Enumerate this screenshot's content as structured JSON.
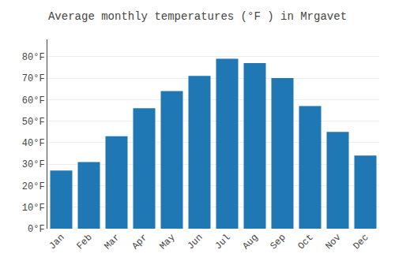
{
  "chart_data": {
    "type": "bar",
    "title": "Average monthly temperatures (°F ) in Mrgavet",
    "categories": [
      "Jan",
      "Feb",
      "Mar",
      "Apr",
      "May",
      "Jun",
      "Jul",
      "Aug",
      "Sep",
      "Oct",
      "Nov",
      "Dec"
    ],
    "values": [
      27,
      31,
      43,
      56,
      64,
      71,
      79,
      77,
      70,
      57,
      45,
      34
    ],
    "ylim": [
      0,
      88
    ],
    "yticks": [
      {
        "value": 0,
        "label": "0°F"
      },
      {
        "value": 10,
        "label": "10°F"
      },
      {
        "value": 20,
        "label": "20°F"
      },
      {
        "value": 30,
        "label": "30°F"
      },
      {
        "value": 40,
        "label": "40°F"
      },
      {
        "value": 50,
        "label": "50°F"
      },
      {
        "value": 60,
        "label": "60°F"
      },
      {
        "value": 70,
        "label": "70°F"
      },
      {
        "value": 80,
        "label": "80°F"
      }
    ],
    "grid": true
  }
}
